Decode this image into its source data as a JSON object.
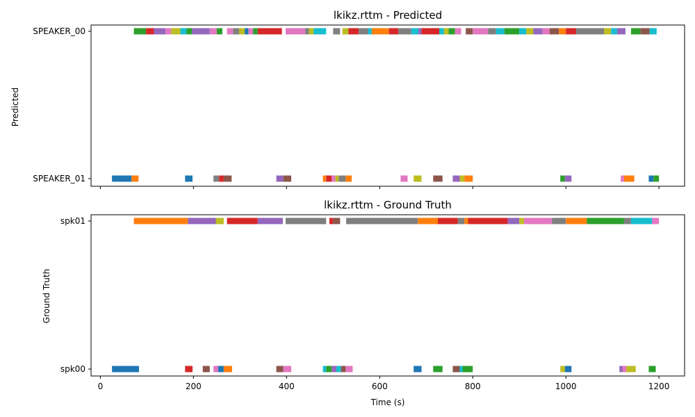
{
  "palette": [
    "#1f77b4",
    "#ff7f0e",
    "#2ca02c",
    "#d62728",
    "#9467bd",
    "#8c564b",
    "#e377c2",
    "#7f7f7f",
    "#bcbd22",
    "#17becf"
  ],
  "chart_data": [
    {
      "type": "timeline",
      "title": "lkikz.rttm - Predicted",
      "ylabel": "Predicted",
      "xlabel": "",
      "xlim": [
        -20,
        1255
      ],
      "xticks": [
        0,
        200,
        400,
        600,
        800,
        1000,
        1200
      ],
      "show_xtick_labels": false,
      "lanes": [
        "SPEAKER_01",
        "SPEAKER_00"
      ],
      "segments": [
        {
          "lane": "SPEAKER_00",
          "start": 72,
          "end": 98,
          "color": "#2ca02c"
        },
        {
          "lane": "SPEAKER_00",
          "start": 98,
          "end": 115,
          "color": "#d62728"
        },
        {
          "lane": "SPEAKER_00",
          "start": 115,
          "end": 140,
          "color": "#9467bd"
        },
        {
          "lane": "SPEAKER_00",
          "start": 140,
          "end": 152,
          "color": "#e377c2"
        },
        {
          "lane": "SPEAKER_00",
          "start": 152,
          "end": 172,
          "color": "#bcbd22"
        },
        {
          "lane": "SPEAKER_00",
          "start": 172,
          "end": 185,
          "color": "#17becf"
        },
        {
          "lane": "SPEAKER_00",
          "start": 185,
          "end": 197,
          "color": "#2ca02c"
        },
        {
          "lane": "SPEAKER_00",
          "start": 197,
          "end": 235,
          "color": "#9467bd"
        },
        {
          "lane": "SPEAKER_00",
          "start": 235,
          "end": 250,
          "color": "#e377c2"
        },
        {
          "lane": "SPEAKER_00",
          "start": 250,
          "end": 262,
          "color": "#2ca02c"
        },
        {
          "lane": "SPEAKER_00",
          "start": 272,
          "end": 285,
          "color": "#e377c2"
        },
        {
          "lane": "SPEAKER_00",
          "start": 285,
          "end": 298,
          "color": "#7f7f7f"
        },
        {
          "lane": "SPEAKER_00",
          "start": 298,
          "end": 310,
          "color": "#bcbd22"
        },
        {
          "lane": "SPEAKER_00",
          "start": 310,
          "end": 318,
          "color": "#1f77b4"
        },
        {
          "lane": "SPEAKER_00",
          "start": 318,
          "end": 328,
          "color": "#e377c2"
        },
        {
          "lane": "SPEAKER_00",
          "start": 328,
          "end": 338,
          "color": "#2ca02c"
        },
        {
          "lane": "SPEAKER_00",
          "start": 338,
          "end": 390,
          "color": "#d62728"
        },
        {
          "lane": "SPEAKER_00",
          "start": 398,
          "end": 440,
          "color": "#e377c2"
        },
        {
          "lane": "SPEAKER_00",
          "start": 440,
          "end": 448,
          "color": "#7f7f7f"
        },
        {
          "lane": "SPEAKER_00",
          "start": 448,
          "end": 458,
          "color": "#bcbd22"
        },
        {
          "lane": "SPEAKER_00",
          "start": 458,
          "end": 485,
          "color": "#17becf"
        },
        {
          "lane": "SPEAKER_00",
          "start": 500,
          "end": 515,
          "color": "#7f7f7f"
        },
        {
          "lane": "SPEAKER_00",
          "start": 520,
          "end": 533,
          "color": "#bcbd22"
        },
        {
          "lane": "SPEAKER_00",
          "start": 533,
          "end": 555,
          "color": "#d62728"
        },
        {
          "lane": "SPEAKER_00",
          "start": 555,
          "end": 575,
          "color": "#7f7f7f"
        },
        {
          "lane": "SPEAKER_00",
          "start": 575,
          "end": 583,
          "color": "#17becf"
        },
        {
          "lane": "SPEAKER_00",
          "start": 583,
          "end": 620,
          "color": "#ff7f0e"
        },
        {
          "lane": "SPEAKER_00",
          "start": 620,
          "end": 640,
          "color": "#d62728"
        },
        {
          "lane": "SPEAKER_00",
          "start": 640,
          "end": 668,
          "color": "#7f7f7f"
        },
        {
          "lane": "SPEAKER_00",
          "start": 668,
          "end": 683,
          "color": "#17becf"
        },
        {
          "lane": "SPEAKER_00",
          "start": 683,
          "end": 690,
          "color": "#9467bd"
        },
        {
          "lane": "SPEAKER_00",
          "start": 690,
          "end": 728,
          "color": "#d62728"
        },
        {
          "lane": "SPEAKER_00",
          "start": 728,
          "end": 738,
          "color": "#17becf"
        },
        {
          "lane": "SPEAKER_00",
          "start": 738,
          "end": 748,
          "color": "#bcbd22"
        },
        {
          "lane": "SPEAKER_00",
          "start": 748,
          "end": 762,
          "color": "#2ca02c"
        },
        {
          "lane": "SPEAKER_00",
          "start": 762,
          "end": 775,
          "color": "#e377c2"
        },
        {
          "lane": "SPEAKER_00",
          "start": 785,
          "end": 800,
          "color": "#8c564b"
        },
        {
          "lane": "SPEAKER_00",
          "start": 800,
          "end": 833,
          "color": "#e377c2"
        },
        {
          "lane": "SPEAKER_00",
          "start": 833,
          "end": 850,
          "color": "#7f7f7f"
        },
        {
          "lane": "SPEAKER_00",
          "start": 850,
          "end": 868,
          "color": "#17becf"
        },
        {
          "lane": "SPEAKER_00",
          "start": 868,
          "end": 900,
          "color": "#2ca02c"
        },
        {
          "lane": "SPEAKER_00",
          "start": 900,
          "end": 915,
          "color": "#17becf"
        },
        {
          "lane": "SPEAKER_00",
          "start": 915,
          "end": 930,
          "color": "#bcbd22"
        },
        {
          "lane": "SPEAKER_00",
          "start": 930,
          "end": 950,
          "color": "#9467bd"
        },
        {
          "lane": "SPEAKER_00",
          "start": 950,
          "end": 965,
          "color": "#e377c2"
        },
        {
          "lane": "SPEAKER_00",
          "start": 965,
          "end": 985,
          "color": "#8c564b"
        },
        {
          "lane": "SPEAKER_00",
          "start": 985,
          "end": 1000,
          "color": "#ff7f0e"
        },
        {
          "lane": "SPEAKER_00",
          "start": 1000,
          "end": 1022,
          "color": "#d62728"
        },
        {
          "lane": "SPEAKER_00",
          "start": 1022,
          "end": 1082,
          "color": "#7f7f7f"
        },
        {
          "lane": "SPEAKER_00",
          "start": 1082,
          "end": 1097,
          "color": "#bcbd22"
        },
        {
          "lane": "SPEAKER_00",
          "start": 1097,
          "end": 1110,
          "color": "#17becf"
        },
        {
          "lane": "SPEAKER_00",
          "start": 1110,
          "end": 1128,
          "color": "#9467bd"
        },
        {
          "lane": "SPEAKER_00",
          "start": 1140,
          "end": 1160,
          "color": "#2ca02c"
        },
        {
          "lane": "SPEAKER_00",
          "start": 1160,
          "end": 1180,
          "color": "#8c564b"
        },
        {
          "lane": "SPEAKER_00",
          "start": 1180,
          "end": 1195,
          "color": "#17becf"
        },
        {
          "lane": "SPEAKER_01",
          "start": 25,
          "end": 67,
          "color": "#1f77b4"
        },
        {
          "lane": "SPEAKER_01",
          "start": 67,
          "end": 82,
          "color": "#ff7f0e"
        },
        {
          "lane": "SPEAKER_01",
          "start": 182,
          "end": 198,
          "color": "#1f77b4"
        },
        {
          "lane": "SPEAKER_01",
          "start": 243,
          "end": 255,
          "color": "#7f7f7f"
        },
        {
          "lane": "SPEAKER_01",
          "start": 255,
          "end": 265,
          "color": "#d62728"
        },
        {
          "lane": "SPEAKER_01",
          "start": 265,
          "end": 282,
          "color": "#8c564b"
        },
        {
          "lane": "SPEAKER_01",
          "start": 378,
          "end": 393,
          "color": "#9467bd"
        },
        {
          "lane": "SPEAKER_01",
          "start": 393,
          "end": 410,
          "color": "#8c564b"
        },
        {
          "lane": "SPEAKER_01",
          "start": 478,
          "end": 485,
          "color": "#ff7f0e"
        },
        {
          "lane": "SPEAKER_01",
          "start": 485,
          "end": 497,
          "color": "#d62728"
        },
        {
          "lane": "SPEAKER_01",
          "start": 497,
          "end": 505,
          "color": "#e377c2"
        },
        {
          "lane": "SPEAKER_01",
          "start": 505,
          "end": 512,
          "color": "#bcbd22"
        },
        {
          "lane": "SPEAKER_01",
          "start": 512,
          "end": 527,
          "color": "#7f7f7f"
        },
        {
          "lane": "SPEAKER_01",
          "start": 527,
          "end": 540,
          "color": "#ff7f0e"
        },
        {
          "lane": "SPEAKER_01",
          "start": 645,
          "end": 660,
          "color": "#e377c2"
        },
        {
          "lane": "SPEAKER_01",
          "start": 673,
          "end": 690,
          "color": "#bcbd22"
        },
        {
          "lane": "SPEAKER_01",
          "start": 715,
          "end": 735,
          "color": "#8c564b"
        },
        {
          "lane": "SPEAKER_01",
          "start": 757,
          "end": 772,
          "color": "#9467bd"
        },
        {
          "lane": "SPEAKER_01",
          "start": 772,
          "end": 782,
          "color": "#bcbd22"
        },
        {
          "lane": "SPEAKER_01",
          "start": 782,
          "end": 800,
          "color": "#ff7f0e"
        },
        {
          "lane": "SPEAKER_01",
          "start": 988,
          "end": 998,
          "color": "#2ca02c"
        },
        {
          "lane": "SPEAKER_01",
          "start": 998,
          "end": 1012,
          "color": "#9467bd"
        },
        {
          "lane": "SPEAKER_01",
          "start": 1118,
          "end": 1125,
          "color": "#e377c2"
        },
        {
          "lane": "SPEAKER_01",
          "start": 1125,
          "end": 1147,
          "color": "#ff7f0e"
        },
        {
          "lane": "SPEAKER_01",
          "start": 1178,
          "end": 1188,
          "color": "#1f77b4"
        },
        {
          "lane": "SPEAKER_01",
          "start": 1188,
          "end": 1200,
          "color": "#2ca02c"
        }
      ]
    },
    {
      "type": "timeline",
      "title": "lkikz.rttm - Ground Truth",
      "ylabel": "Ground Truth",
      "xlabel": "Time (s)",
      "xlim": [
        -20,
        1255
      ],
      "xticks": [
        0,
        200,
        400,
        600,
        800,
        1000,
        1200
      ],
      "show_xtick_labels": true,
      "lanes": [
        "spk00",
        "spk01"
      ],
      "segments": [
        {
          "lane": "spk01",
          "start": 72,
          "end": 188,
          "color": "#ff7f0e"
        },
        {
          "lane": "spk01",
          "start": 188,
          "end": 248,
          "color": "#9467bd"
        },
        {
          "lane": "spk01",
          "start": 248,
          "end": 265,
          "color": "#bcbd22"
        },
        {
          "lane": "spk01",
          "start": 272,
          "end": 338,
          "color": "#d62728"
        },
        {
          "lane": "spk01",
          "start": 338,
          "end": 392,
          "color": "#9467bd"
        },
        {
          "lane": "spk01",
          "start": 398,
          "end": 485,
          "color": "#7f7f7f"
        },
        {
          "lane": "spk01",
          "start": 492,
          "end": 500,
          "color": "#d62728"
        },
        {
          "lane": "spk01",
          "start": 500,
          "end": 515,
          "color": "#8c564b"
        },
        {
          "lane": "spk01",
          "start": 528,
          "end": 682,
          "color": "#7f7f7f"
        },
        {
          "lane": "spk01",
          "start": 682,
          "end": 725,
          "color": "#ff7f0e"
        },
        {
          "lane": "spk01",
          "start": 725,
          "end": 768,
          "color": "#d62728"
        },
        {
          "lane": "spk01",
          "start": 768,
          "end": 782,
          "color": "#7f7f7f"
        },
        {
          "lane": "spk01",
          "start": 782,
          "end": 790,
          "color": "#ff7f0e"
        },
        {
          "lane": "spk01",
          "start": 790,
          "end": 875,
          "color": "#d62728"
        },
        {
          "lane": "spk01",
          "start": 875,
          "end": 900,
          "color": "#9467bd"
        },
        {
          "lane": "spk01",
          "start": 900,
          "end": 910,
          "color": "#bcbd22"
        },
        {
          "lane": "spk01",
          "start": 910,
          "end": 970,
          "color": "#e377c2"
        },
        {
          "lane": "spk01",
          "start": 970,
          "end": 1000,
          "color": "#7f7f7f"
        },
        {
          "lane": "spk01",
          "start": 1000,
          "end": 1045,
          "color": "#ff7f0e"
        },
        {
          "lane": "spk01",
          "start": 1045,
          "end": 1125,
          "color": "#2ca02c"
        },
        {
          "lane": "spk01",
          "start": 1125,
          "end": 1140,
          "color": "#7f7f7f"
        },
        {
          "lane": "spk01",
          "start": 1140,
          "end": 1185,
          "color": "#17becf"
        },
        {
          "lane": "spk01",
          "start": 1185,
          "end": 1200,
          "color": "#e377c2"
        },
        {
          "lane": "spk00",
          "start": 25,
          "end": 83,
          "color": "#1f77b4"
        },
        {
          "lane": "spk00",
          "start": 182,
          "end": 198,
          "color": "#d62728"
        },
        {
          "lane": "spk00",
          "start": 220,
          "end": 235,
          "color": "#8c564b"
        },
        {
          "lane": "spk00",
          "start": 243,
          "end": 253,
          "color": "#e377c2"
        },
        {
          "lane": "spk00",
          "start": 253,
          "end": 265,
          "color": "#1f77b4"
        },
        {
          "lane": "spk00",
          "start": 265,
          "end": 283,
          "color": "#ff7f0e"
        },
        {
          "lane": "spk00",
          "start": 378,
          "end": 393,
          "color": "#8c564b"
        },
        {
          "lane": "spk00",
          "start": 393,
          "end": 410,
          "color": "#e377c2"
        },
        {
          "lane": "spk00",
          "start": 478,
          "end": 485,
          "color": "#17becf"
        },
        {
          "lane": "spk00",
          "start": 485,
          "end": 497,
          "color": "#2ca02c"
        },
        {
          "lane": "spk00",
          "start": 497,
          "end": 507,
          "color": "#9467bd"
        },
        {
          "lane": "spk00",
          "start": 507,
          "end": 517,
          "color": "#17becf"
        },
        {
          "lane": "spk00",
          "start": 517,
          "end": 527,
          "color": "#8c564b"
        },
        {
          "lane": "spk00",
          "start": 527,
          "end": 542,
          "color": "#e377c2"
        },
        {
          "lane": "spk00",
          "start": 673,
          "end": 690,
          "color": "#1f77b4"
        },
        {
          "lane": "spk00",
          "start": 715,
          "end": 735,
          "color": "#2ca02c"
        },
        {
          "lane": "spk00",
          "start": 757,
          "end": 772,
          "color": "#8c564b"
        },
        {
          "lane": "spk00",
          "start": 772,
          "end": 778,
          "color": "#17becf"
        },
        {
          "lane": "spk00",
          "start": 778,
          "end": 800,
          "color": "#2ca02c"
        },
        {
          "lane": "spk00",
          "start": 988,
          "end": 998,
          "color": "#bcbd22"
        },
        {
          "lane": "spk00",
          "start": 998,
          "end": 1012,
          "color": "#1f77b4"
        },
        {
          "lane": "spk00",
          "start": 1115,
          "end": 1122,
          "color": "#9467bd"
        },
        {
          "lane": "spk00",
          "start": 1122,
          "end": 1130,
          "color": "#e377c2"
        },
        {
          "lane": "spk00",
          "start": 1130,
          "end": 1150,
          "color": "#bcbd22"
        },
        {
          "lane": "spk00",
          "start": 1178,
          "end": 1193,
          "color": "#2ca02c"
        }
      ]
    }
  ]
}
